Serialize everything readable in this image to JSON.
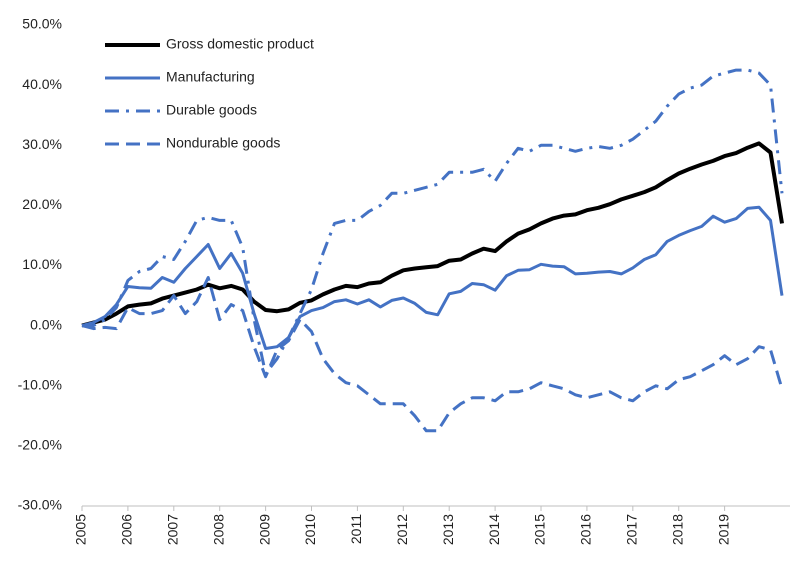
{
  "chart_data": {
    "type": "line",
    "x": [
      2005,
      2005.25,
      2005.5,
      2005.75,
      2006,
      2006.25,
      2006.5,
      2006.75,
      2007,
      2007.25,
      2007.5,
      2007.75,
      2008,
      2008.25,
      2008.5,
      2008.75,
      2009,
      2009.25,
      2009.5,
      2009.75,
      2010,
      2010.25,
      2010.5,
      2010.75,
      2011,
      2011.25,
      2011.5,
      2011.75,
      2012,
      2012.25,
      2012.5,
      2012.75,
      2013,
      2013.25,
      2013.5,
      2013.75,
      2014,
      2014.25,
      2014.5,
      2014.75,
      2015,
      2015.25,
      2015.5,
      2015.75,
      2016,
      2016.25,
      2016.5,
      2016.75,
      2017,
      2017.25,
      2017.5,
      2017.75,
      2018,
      2018.25,
      2018.5,
      2018.75,
      2019,
      2019.25,
      2019.5,
      2019.75,
      2020,
      2020.25
    ],
    "series": [
      {
        "name": "Gross domestic product",
        "color": "#000000",
        "style": "solid",
        "width": 4,
        "values": [
          0,
          0.5,
          1,
          2,
          3.2,
          3.5,
          3.7,
          4.5,
          5,
          5.5,
          6,
          6.8,
          6.2,
          6.6,
          6,
          4,
          2.6,
          2.4,
          2.7,
          3.8,
          4.2,
          5.2,
          6,
          6.6,
          6.4,
          7,
          7.2,
          8.3,
          9.2,
          9.5,
          9.7,
          9.9,
          10.8,
          11,
          12,
          12.8,
          12.4,
          14,
          15.3,
          16,
          17,
          17.8,
          18.3,
          18.5,
          19.2,
          19.6,
          20.2,
          21,
          21.6,
          22.2,
          23,
          24.2,
          25.3,
          26.1,
          26.8,
          27.4,
          28.2,
          28.7,
          29.6,
          30.3,
          28.8,
          17
        ]
      },
      {
        "name": "Manufacturing",
        "color": "#4472c4",
        "style": "solid",
        "width": 3,
        "values": [
          0,
          0.5,
          1.5,
          3.5,
          6.5,
          6.3,
          6.2,
          8,
          7.2,
          9.5,
          11.5,
          13.5,
          9.5,
          12,
          8.7,
          2,
          -3.8,
          -3.5,
          -2,
          1.5,
          2.5,
          3,
          4,
          4.3,
          3.6,
          4.3,
          3.1,
          4.2,
          4.6,
          3.7,
          2.2,
          1.8,
          5.3,
          5.7,
          7,
          6.8,
          5.9,
          8.3,
          9.2,
          9.3,
          10.2,
          9.9,
          9.8,
          8.6,
          8.7,
          8.9,
          9,
          8.6,
          9.6,
          11,
          11.8,
          14,
          15,
          15.8,
          16.5,
          18.2,
          17.2,
          17.8,
          19.5,
          19.7,
          17.5,
          5
        ]
      },
      {
        "name": "Durable goods",
        "color": "#4472c4",
        "style": "dashdot",
        "width": 3,
        "values": [
          0,
          0,
          1,
          3,
          7.5,
          9,
          9.5,
          11.5,
          11,
          14,
          17.5,
          18,
          17.5,
          17.5,
          13,
          1,
          -8,
          -5.5,
          -2,
          2,
          6,
          12,
          17,
          17.5,
          17.5,
          19,
          20,
          22,
          22,
          22.5,
          23,
          23.5,
          25.5,
          25.5,
          25.5,
          26,
          24,
          27,
          29.5,
          29,
          30,
          30,
          29.5,
          29,
          29.5,
          29.8,
          29.5,
          30,
          31,
          32.5,
          34,
          36.5,
          38.5,
          39.5,
          40,
          41.5,
          42,
          42.5,
          42.5,
          42,
          40,
          22
        ]
      },
      {
        "name": "Nondurable goods",
        "color": "#4472c4",
        "style": "dashed",
        "width": 3,
        "values": [
          0,
          -0.5,
          -0.3,
          -0.5,
          3,
          2,
          2,
          2.5,
          5,
          2,
          4,
          8,
          1,
          3.5,
          2.5,
          -3.5,
          -8.5,
          -4,
          -2.5,
          1,
          -1,
          -5.5,
          -8,
          -9.5,
          -10,
          -11.5,
          -13,
          -13,
          -13,
          -15,
          -17.5,
          -17.5,
          -14.5,
          -13,
          -12,
          -12,
          -12.5,
          -11,
          -11,
          -10.5,
          -9.5,
          -10,
          -10.5,
          -11.5,
          -12,
          -11.5,
          -11,
          -12,
          -12.5,
          -11,
          -10,
          -10.5,
          -9,
          -8.5,
          -7.5,
          -6.5,
          -5,
          -6.5,
          -5.5,
          -3.5,
          -4,
          -10.5
        ]
      }
    ],
    "xlim": [
      2005,
      2020.25
    ],
    "xticks": [
      2005,
      2006,
      2007,
      2008,
      2009,
      2010,
      2011,
      2012,
      2013,
      2014,
      2015,
      2016,
      2017,
      2018,
      2019
    ],
    "ylim": [
      -30,
      50
    ],
    "yticks": [
      {
        "value": -30,
        "label": "-30.0%"
      },
      {
        "value": -20,
        "label": "-20.0%"
      },
      {
        "value": -10,
        "label": "-10.0%"
      },
      {
        "value": 0,
        "label": "0.0%"
      },
      {
        "value": 10,
        "label": "10.0%"
      },
      {
        "value": 20,
        "label": "20.0%"
      },
      {
        "value": 30,
        "label": "30.0%"
      },
      {
        "value": 40,
        "label": "40.0%"
      },
      {
        "value": 50,
        "label": "50.0%"
      }
    ],
    "grid": false,
    "legend": "top-left"
  }
}
